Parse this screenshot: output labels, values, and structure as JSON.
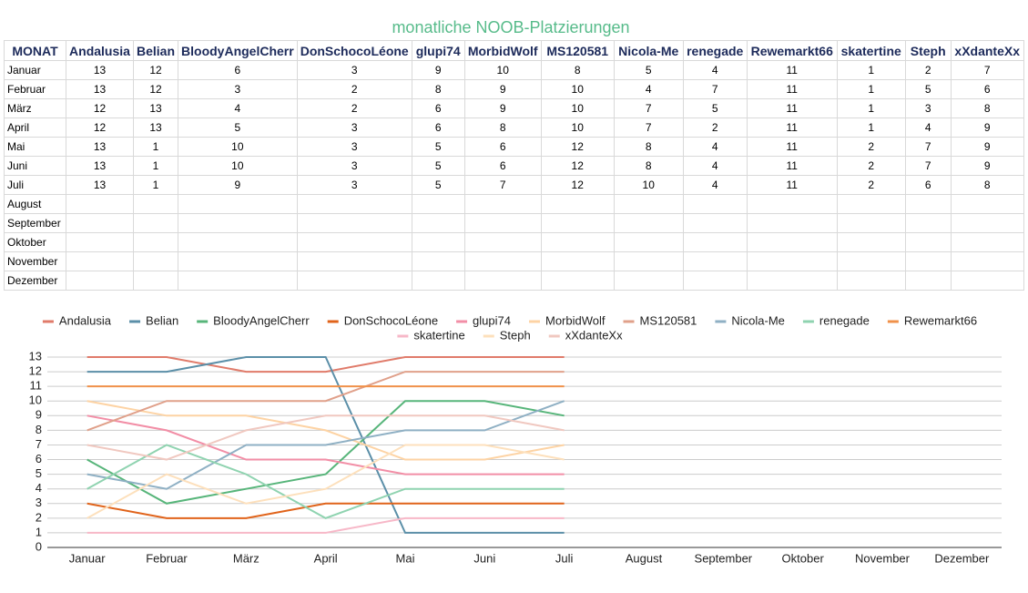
{
  "title": "monatliche NOOB-Platzierungen",
  "table": {
    "header": "MONAT"
  },
  "chart_data": {
    "type": "line",
    "categories": [
      "Januar",
      "Februar",
      "März",
      "April",
      "Mai",
      "Juni",
      "Juli",
      "August",
      "September",
      "Oktober",
      "November",
      "Dezember"
    ],
    "ylim": [
      0,
      13
    ],
    "yticks": [
      0,
      1,
      2,
      3,
      4,
      5,
      6,
      7,
      8,
      9,
      10,
      11,
      12,
      13
    ],
    "grid": true,
    "legend": "top",
    "series": [
      {
        "name": "Andalusia",
        "color": "#e07b6a",
        "values": [
          13,
          13,
          12,
          12,
          13,
          13,
          13,
          null,
          null,
          null,
          null,
          null
        ]
      },
      {
        "name": "Belian",
        "color": "#5b8fa8",
        "values": [
          12,
          12,
          13,
          13,
          1,
          1,
          1,
          null,
          null,
          null,
          null,
          null
        ]
      },
      {
        "name": "BloodyAngelCherr",
        "color": "#57b57a",
        "values": [
          6,
          3,
          4,
          5,
          10,
          10,
          9,
          null,
          null,
          null,
          null,
          null
        ]
      },
      {
        "name": "DonSchocoLéone",
        "color": "#e0631a",
        "values": [
          3,
          2,
          2,
          3,
          3,
          3,
          3,
          null,
          null,
          null,
          null,
          null
        ]
      },
      {
        "name": "glupi74",
        "color": "#f28ea6",
        "values": [
          9,
          8,
          6,
          6,
          5,
          5,
          5,
          null,
          null,
          null,
          null,
          null
        ]
      },
      {
        "name": "MorbidWolf",
        "color": "#fdd3a4",
        "values": [
          10,
          9,
          9,
          8,
          6,
          6,
          7,
          null,
          null,
          null,
          null,
          null
        ]
      },
      {
        "name": "MS120581",
        "color": "#e0a08a",
        "values": [
          8,
          10,
          10,
          10,
          12,
          12,
          12,
          null,
          null,
          null,
          null,
          null
        ]
      },
      {
        "name": "Nicola-Me",
        "color": "#8fb0c4",
        "values": [
          5,
          4,
          7,
          7,
          8,
          8,
          10,
          null,
          null,
          null,
          null,
          null
        ]
      },
      {
        "name": "renegade",
        "color": "#8fd3b0",
        "values": [
          4,
          7,
          5,
          2,
          4,
          4,
          4,
          null,
          null,
          null,
          null,
          null
        ]
      },
      {
        "name": "Rewemarkt66",
        "color": "#f0914a",
        "values": [
          11,
          11,
          11,
          11,
          11,
          11,
          11,
          null,
          null,
          null,
          null,
          null
        ]
      },
      {
        "name": "skatertine",
        "color": "#f7b8c8",
        "values": [
          1,
          1,
          1,
          1,
          2,
          2,
          2,
          null,
          null,
          null,
          null,
          null
        ]
      },
      {
        "name": "Steph",
        "color": "#fde0bc",
        "values": [
          2,
          5,
          3,
          4,
          7,
          7,
          6,
          null,
          null,
          null,
          null,
          null
        ]
      },
      {
        "name": "xXdanteXx",
        "color": "#f0c8c0",
        "values": [
          7,
          6,
          8,
          9,
          9,
          9,
          8,
          null,
          null,
          null,
          null,
          null
        ]
      }
    ]
  }
}
